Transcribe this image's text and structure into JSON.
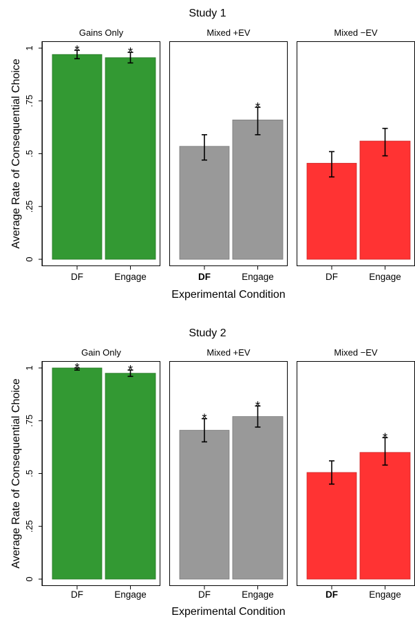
{
  "colors": {
    "gains": "#339933",
    "gains_edge": "#2a7a2a",
    "mixed_pos": "#999999",
    "mixed_pos_edge": "#7a7a7a",
    "mixed_neg": "#ff3333",
    "mixed_neg_edge": "#cc2a2a"
  },
  "chart_data": [
    {
      "type": "bar",
      "title": "Study 1",
      "xlabel": "Experimental Condition",
      "ylabel": "Average Rate of Consequential Choice",
      "ylim": [
        0,
        1.02
      ],
      "yticks": [
        {
          "value": 0,
          "label": "0"
        },
        {
          "value": 0.25,
          "label": ".25"
        },
        {
          "value": 0.5,
          "label": ".5"
        },
        {
          "value": 0.75,
          "label": ".75"
        },
        {
          "value": 1,
          "label": "1"
        }
      ],
      "grid": false,
      "panels": [
        {
          "label": "Gains Only",
          "color": "gains",
          "bars": [
            {
              "category": "DF",
              "value": 0.97,
              "ci": [
                0.95,
                0.99
              ],
              "star": "*",
              "bold_label": false
            },
            {
              "category": "Engage",
              "value": 0.955,
              "ci": [
                0.93,
                0.98
              ],
              "star": "*",
              "bold_label": false
            }
          ]
        },
        {
          "label": "Mixed +EV",
          "color": "mixed_pos",
          "bars": [
            {
              "category": "DF",
              "value": 0.535,
              "ci": [
                0.47,
                0.59
              ],
              "star": "",
              "bold_label": true
            },
            {
              "category": "Engage",
              "value": 0.66,
              "ci": [
                0.59,
                0.72
              ],
              "star": "*",
              "bold_label": false
            }
          ]
        },
        {
          "label": "Mixed −EV",
          "color": "mixed_neg",
          "bars": [
            {
              "category": "DF",
              "value": 0.455,
              "ci": [
                0.39,
                0.51
              ],
              "star": "",
              "bold_label": false
            },
            {
              "category": "Engage",
              "value": 0.56,
              "ci": [
                0.49,
                0.62
              ],
              "star": "",
              "bold_label": false
            }
          ]
        }
      ]
    },
    {
      "type": "bar",
      "title": "Study 2",
      "xlabel": "Experimental Condition",
      "ylabel": "Average Rate of Consequential Choice",
      "ylim": [
        0,
        1.02
      ],
      "yticks": [
        {
          "value": 0,
          "label": "0"
        },
        {
          "value": 0.25,
          "label": ".25"
        },
        {
          "value": 0.5,
          "label": ".5"
        },
        {
          "value": 0.75,
          "label": ".75"
        },
        {
          "value": 1,
          "label": "1"
        }
      ],
      "grid": false,
      "panels": [
        {
          "label": "Gain Only",
          "color": "gains",
          "bars": [
            {
              "category": "DF",
              "value": 1.0,
              "ci": [
                0.99,
                1.0
              ],
              "star": "*",
              "bold_label": false
            },
            {
              "category": "Engage",
              "value": 0.975,
              "ci": [
                0.96,
                0.99
              ],
              "star": "*",
              "bold_label": false
            }
          ]
        },
        {
          "label": "Mixed +EV",
          "color": "mixed_pos",
          "bars": [
            {
              "category": "DF",
              "value": 0.705,
              "ci": [
                0.65,
                0.76
              ],
              "star": "*",
              "bold_label": false
            },
            {
              "category": "Engage",
              "value": 0.77,
              "ci": [
                0.72,
                0.82
              ],
              "star": "*",
              "bold_label": false
            }
          ]
        },
        {
          "label": "Mixed −EV",
          "color": "mixed_neg",
          "bars": [
            {
              "category": "DF",
              "value": 0.505,
              "ci": [
                0.45,
                0.56
              ],
              "star": "",
              "bold_label": true
            },
            {
              "category": "Engage",
              "value": 0.6,
              "ci": [
                0.54,
                0.67
              ],
              "star": "*",
              "bold_label": false
            }
          ]
        }
      ]
    }
  ]
}
